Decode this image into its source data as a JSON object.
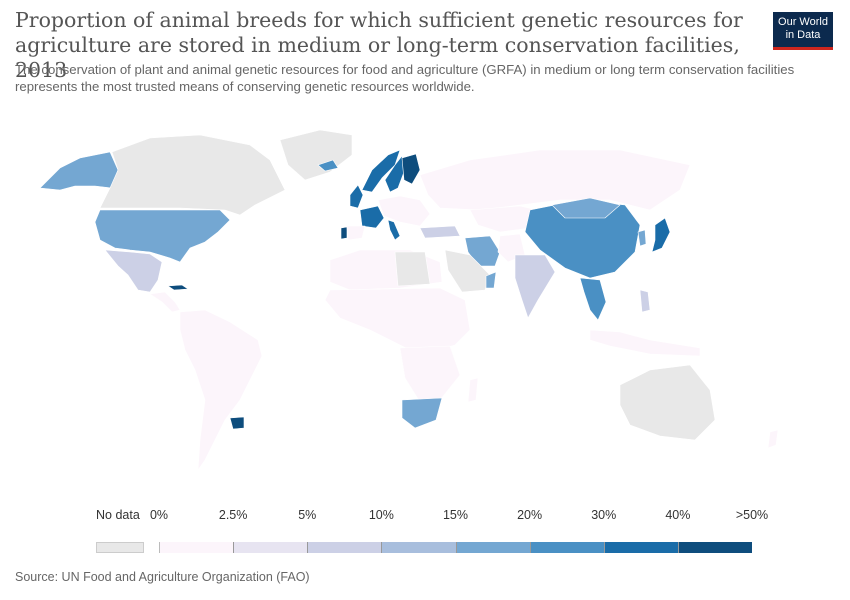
{
  "header": {
    "title": "Proportion of animal breeds for which sufficient genetic resources for agriculture are stored in medium or long-term conservation facilities, 2013",
    "subtitle": "The conservation of plant and animal genetic resources for food and agriculture (GRFA) in medium or long term conservation facilities represents the most trusted means of conserving genetic resources worldwide.",
    "logo_line1": "Our World",
    "logo_line2": "in Data"
  },
  "legend": {
    "nodata_label": "No data",
    "nodata_color": "#e8e8e8",
    "bins": [
      {
        "label_start": "0%",
        "color": "#fcf5fb"
      },
      {
        "label_start": "2.5%",
        "color": "#e7e4f1"
      },
      {
        "label_start": "5%",
        "color": "#ccd0e6"
      },
      {
        "label_start": "10%",
        "color": "#a8bedd"
      },
      {
        "label_start": "15%",
        "color": "#74a7d2"
      },
      {
        "label_start": "20%",
        "color": "#4a90c4"
      },
      {
        "label_start": "30%",
        "color": "#1a6ca8"
      },
      {
        "label_start": "40%",
        "color": "#0e4d7d"
      }
    ],
    "end_label": ">50%"
  },
  "map_regions": [
    {
      "name": "Alaska",
      "color": "#74a7d2"
    },
    {
      "name": "Canada",
      "color": "#e8e8e8"
    },
    {
      "name": "Greenland",
      "color": "#e8e8e8"
    },
    {
      "name": "Iceland",
      "color": "#4a90c4"
    },
    {
      "name": "United States",
      "color": "#74a7d2"
    },
    {
      "name": "Mexico",
      "color": "#ccd0e6"
    },
    {
      "name": "Central America",
      "color": "#fcf5fb"
    },
    {
      "name": "Cuba",
      "color": "#0e4d7d"
    },
    {
      "name": "South America",
      "color": "#fcf5fb"
    },
    {
      "name": "Uruguay",
      "color": "#0e4d7d"
    },
    {
      "name": "Norway",
      "color": "#1a6ca8"
    },
    {
      "name": "Sweden",
      "color": "#1a6ca8"
    },
    {
      "name": "Finland",
      "color": "#0e4d7d"
    },
    {
      "name": "United Kingdom",
      "color": "#1a6ca8"
    },
    {
      "name": "France",
      "color": "#1a6ca8"
    },
    {
      "name": "Portugal",
      "color": "#0e4d7d"
    },
    {
      "name": "Spain",
      "color": "#fcf5fb"
    },
    {
      "name": "Italy",
      "color": "#1a6ca8"
    },
    {
      "name": "Central Europe",
      "color": "#fcf5fb"
    },
    {
      "name": "Russia",
      "color": "#fcf5fb"
    },
    {
      "name": "Kazakhstan",
      "color": "#fcf5fb"
    },
    {
      "name": "China",
      "color": "#4a90c4"
    },
    {
      "name": "Mongolia",
      "color": "#74a7d2"
    },
    {
      "name": "Japan",
      "color": "#1a6ca8"
    },
    {
      "name": "Korea",
      "color": "#74a7d2"
    },
    {
      "name": "Turkey",
      "color": "#ccd0e6"
    },
    {
      "name": "Iran",
      "color": "#74a7d2"
    },
    {
      "name": "Arabian Peninsula",
      "color": "#e8e8e8"
    },
    {
      "name": "Oman",
      "color": "#74a7d2"
    },
    {
      "name": "Pakistan",
      "color": "#fcf5fb"
    },
    {
      "name": "India",
      "color": "#ccd0e6"
    },
    {
      "name": "Southeast Asia",
      "color": "#4a90c4"
    },
    {
      "name": "Philippines",
      "color": "#ccd0e6"
    },
    {
      "name": "Indonesia",
      "color": "#fcf5fb"
    },
    {
      "name": "Australia",
      "color": "#e8e8e8"
    },
    {
      "name": "New Zealand",
      "color": "#fcf5fb"
    },
    {
      "name": "North Africa",
      "color": "#fcf5fb"
    },
    {
      "name": "Libya",
      "color": "#e8e8e8"
    },
    {
      "name": "Burkina Faso",
      "color": "#1a6ca8"
    },
    {
      "name": "Cameroon",
      "color": "#4a90c4"
    },
    {
      "name": "Uganda",
      "color": "#1a6ca8"
    },
    {
      "name": "Central and East Africa",
      "color": "#fcf5fb"
    },
    {
      "name": "Southern Africa",
      "color": "#fcf5fb"
    },
    {
      "name": "South Africa",
      "color": "#74a7d2"
    },
    {
      "name": "Madagascar",
      "color": "#fcf5fb"
    }
  ],
  "source": "Source: UN Food and Agriculture Organization (FAO)"
}
